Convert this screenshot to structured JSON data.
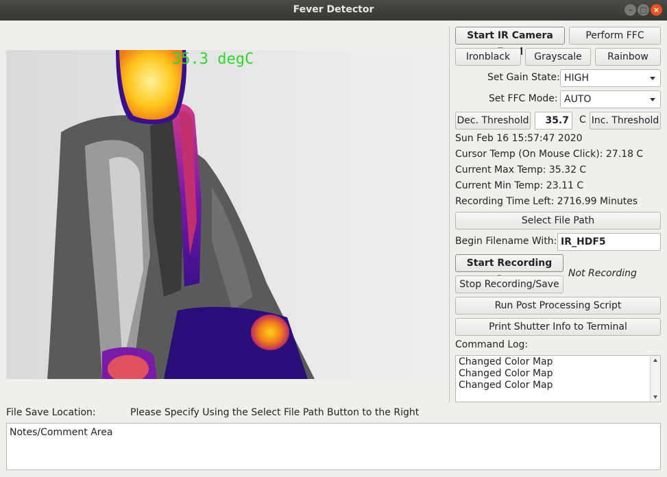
{
  "window": {
    "title": "Fever Detector",
    "controls": [
      "minimize-icon",
      "maximize-icon",
      "close-icon"
    ]
  },
  "camera": {
    "temp_overlay": "35.3 degC"
  },
  "controls": {
    "start_ir": "Start IR Camera Feed",
    "perform_ffc": "Perform FFC",
    "ironblack": "Ironblack",
    "grayscale": "Grayscale",
    "rainbow": "Rainbow",
    "gain_label": "Set Gain State:",
    "gain_value": "HIGH",
    "ffc_mode_label": "Set FFC Mode:",
    "ffc_mode_value": "AUTO",
    "dec_threshold": "Dec. Threshold",
    "threshold_value": "35.7",
    "threshold_unit": "C",
    "inc_threshold": "Inc. Threshold"
  },
  "status": {
    "datetime": "Sun Feb 16 15:57:47 2020",
    "cursor_temp": "Cursor Temp (On Mouse Click): 27.18 C",
    "max_temp": "Current Max Temp: 35.32 C",
    "min_temp": "Current Min Temp: 23.11 C",
    "recording_time": "Recording Time Left: 2716.99 Minutes"
  },
  "recording": {
    "select_path": "Select File Path",
    "filename_label": "Begin Filename With:",
    "filename_value": "IR_HDF5",
    "start_recording": "Start Recording Data",
    "stop_recording": "Stop Recording/Save",
    "recording_state": "Not Recording",
    "post_processing": "Run Post Processing Script",
    "print_shutter": "Print Shutter Info to Terminal"
  },
  "log": {
    "label": "Command Log:",
    "lines": [
      "Changed Color Map",
      "Changed Color Map",
      "Changed Color Map"
    ]
  },
  "footer": {
    "file_save_label": "File Save Location:",
    "file_save_value": "Please Specify Using the Select File Path Button to the Right",
    "notes_text": "Notes/Comment Area"
  },
  "colors": {
    "accent_close": "#e95420",
    "overlay_text": "#2bd82b",
    "titlebar": "#3c3b37"
  }
}
